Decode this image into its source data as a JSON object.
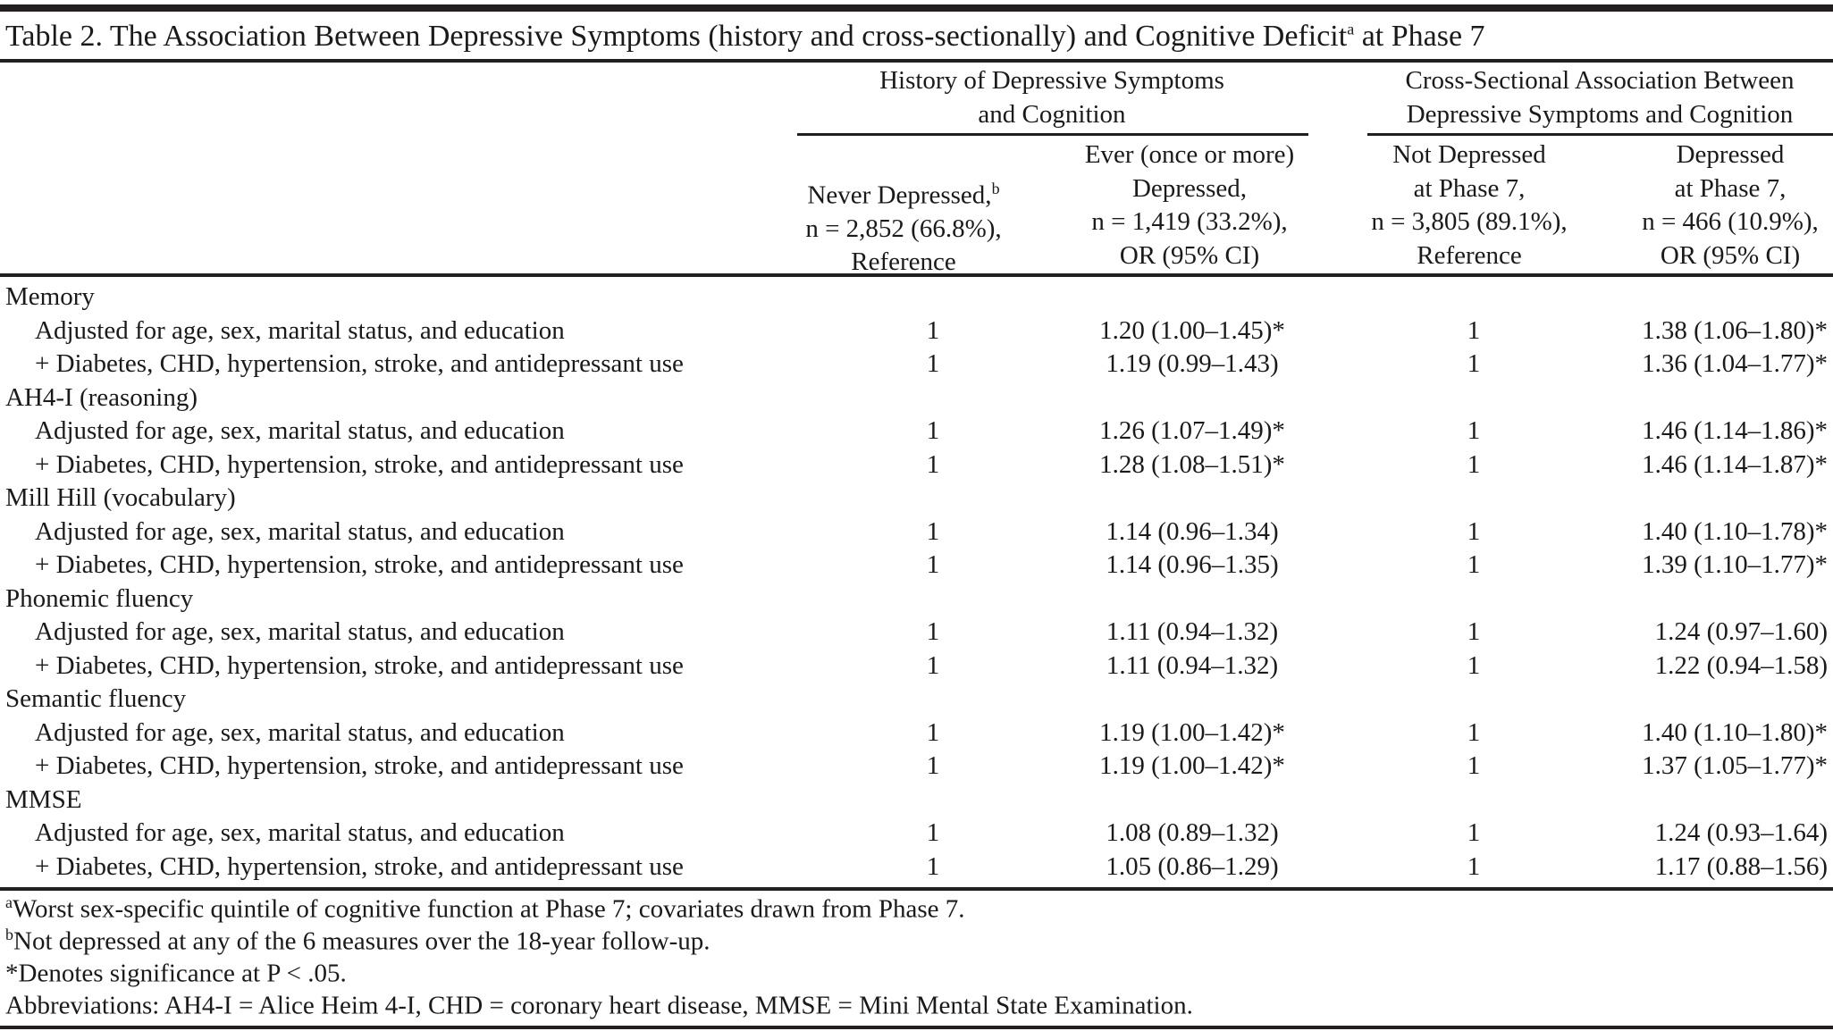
{
  "title": {
    "text": "Table 2. The Association Between Depressive Symptoms (history and cross-sectionally) and Cognitive Deficit",
    "sup": "a",
    "suffix": " at Phase 7"
  },
  "groups": [
    {
      "line1": "History of Depressive Symptoms",
      "line2": "and Cognition"
    },
    {
      "line1": "Cross-Sectional Association Between",
      "line2": "Depressive Symptoms and Cognition"
    }
  ],
  "columns": [
    {
      "lines": [
        "",
        "Never Depressed,",
        "n = 2,852 (66.8%),",
        "Reference"
      ],
      "sup": "b"
    },
    {
      "lines": [
        "Ever (once or more)",
        "Depressed,",
        "n = 1,419 (33.2%),",
        "OR (95% CI)"
      ]
    },
    {
      "lines": [
        "Not Depressed",
        "at Phase 7,",
        "n = 3,805 (89.1%),",
        "Reference"
      ]
    },
    {
      "lines": [
        "Depressed",
        "at Phase 7,",
        "n = 466 (10.9%),",
        "OR (95% CI)"
      ]
    }
  ],
  "rows": [
    {
      "type": "section",
      "label": "Memory"
    },
    {
      "type": "data",
      "label": "Adjusted for age, sex, marital status, and education",
      "v": [
        "1",
        "1.20 (1.00–1.45)*",
        "1",
        "1.38 (1.06–1.80)*"
      ]
    },
    {
      "type": "data",
      "label": "+ Diabetes, CHD, hypertension, stroke, and antidepressant use",
      "v": [
        "1",
        "1.19 (0.99–1.43)",
        "1",
        "1.36 (1.04–1.77)*"
      ]
    },
    {
      "type": "section",
      "label": "AH4-I (reasoning)"
    },
    {
      "type": "data",
      "label": "Adjusted for age, sex, marital status, and education",
      "v": [
        "1",
        "1.26 (1.07–1.49)*",
        "1",
        "1.46 (1.14–1.86)*"
      ]
    },
    {
      "type": "data",
      "label": "+ Diabetes, CHD, hypertension, stroke, and antidepressant use",
      "v": [
        "1",
        "1.28 (1.08–1.51)*",
        "1",
        "1.46 (1.14–1.87)*"
      ]
    },
    {
      "type": "section",
      "label": "Mill Hill (vocabulary)"
    },
    {
      "type": "data",
      "label": "Adjusted for age, sex, marital status, and education",
      "v": [
        "1",
        "1.14 (0.96–1.34)",
        "1",
        "1.40 (1.10–1.78)*"
      ]
    },
    {
      "type": "data",
      "label": "+ Diabetes, CHD, hypertension, stroke, and antidepressant use",
      "v": [
        "1",
        "1.14 (0.96–1.35)",
        "1",
        "1.39 (1.10–1.77)*"
      ]
    },
    {
      "type": "section",
      "label": "Phonemic fluency"
    },
    {
      "type": "data",
      "label": "Adjusted for age, sex, marital status, and education",
      "v": [
        "1",
        "1.11 (0.94–1.32)",
        "1",
        "1.24 (0.97–1.60)"
      ]
    },
    {
      "type": "data",
      "label": "+ Diabetes, CHD, hypertension, stroke, and antidepressant use",
      "v": [
        "1",
        "1.11 (0.94–1.32)",
        "1",
        "1.22 (0.94–1.58)"
      ]
    },
    {
      "type": "section",
      "label": "Semantic fluency"
    },
    {
      "type": "data",
      "label": "Adjusted for age, sex, marital status, and education",
      "v": [
        "1",
        "1.19 (1.00–1.42)*",
        "1",
        "1.40 (1.10–1.80)*"
      ]
    },
    {
      "type": "data",
      "label": "+ Diabetes, CHD, hypertension, stroke, and antidepressant use",
      "v": [
        "1",
        "1.19 (1.00–1.42)*",
        "1",
        "1.37 (1.05–1.77)*"
      ]
    },
    {
      "type": "section",
      "label": "MMSE"
    },
    {
      "type": "data",
      "label": "Adjusted for age, sex, marital status, and education",
      "v": [
        "1",
        "1.08 (0.89–1.32)",
        "1",
        "1.24 (0.93–1.64)"
      ]
    },
    {
      "type": "data",
      "label": "+ Diabetes, CHD, hypertension, stroke, and antidepressant use",
      "v": [
        "1",
        "1.05 (0.86–1.29)",
        "1",
        "1.17 (0.88–1.56)"
      ]
    }
  ],
  "footnotes": [
    {
      "sup": "a",
      "text": "Worst sex-specific quintile of cognitive function at Phase 7; covariates drawn from Phase 7."
    },
    {
      "sup": "b",
      "text": "Not depressed at any of the 6 measures over the 18-year follow-up."
    },
    {
      "sup": "",
      "text": "*Denotes significance at P < .05."
    },
    {
      "sup": "",
      "text": "Abbreviations: AH4-I = Alice Heim 4-I, CHD = coronary heart disease, MMSE = Mini Mental State Examination."
    }
  ]
}
